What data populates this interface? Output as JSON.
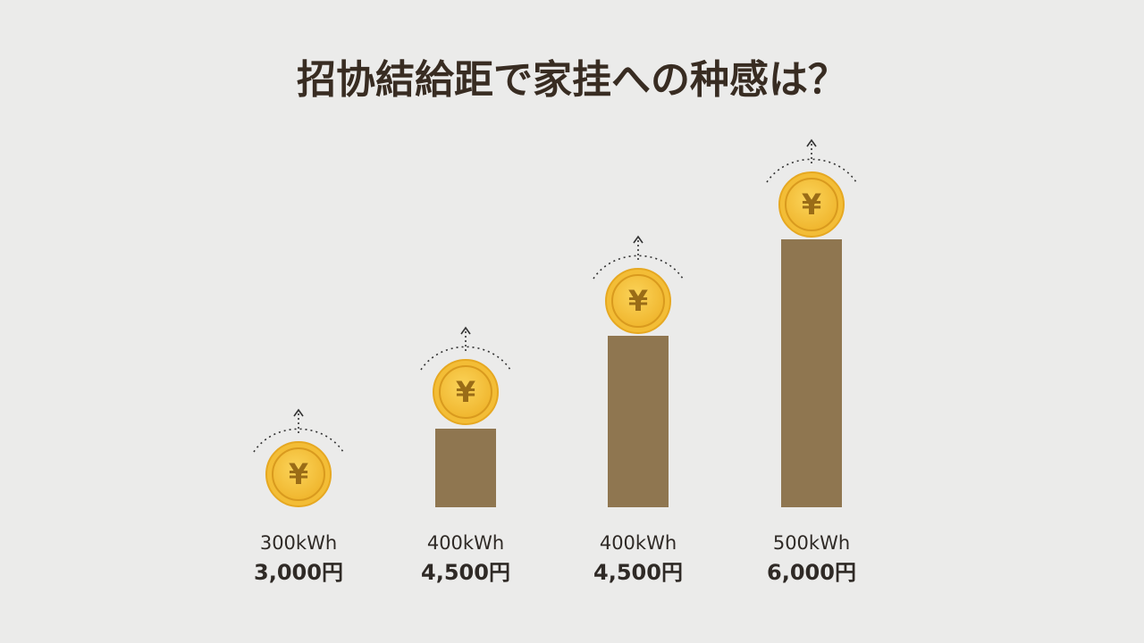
{
  "title": "招协結給距で家挂への种感は？",
  "coin_symbol": "¥",
  "items": [
    {
      "usage": "300kWh",
      "cost": "3,000円"
    },
    {
      "usage": "400kWh",
      "cost": "4,500円"
    },
    {
      "usage": "400kWh",
      "cost": "4,500円"
    },
    {
      "usage": "500kWh",
      "cost": "6,000円"
    }
  ]
}
